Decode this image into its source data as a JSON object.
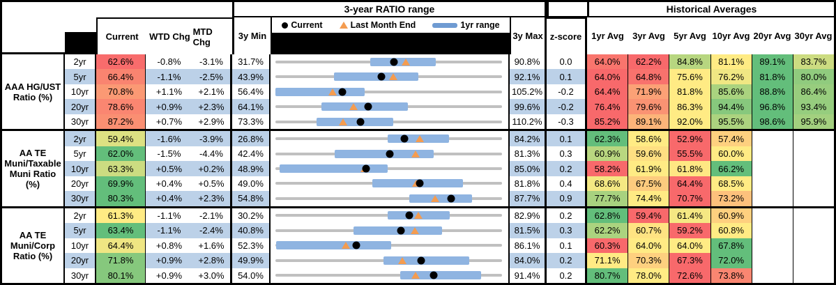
{
  "header": {
    "range_title": "3-year RATIO range",
    "hist_title": "Historical Averages",
    "col_current": "Current",
    "col_wtd": "WTD Chg",
    "col_mtd": "MTD Chg",
    "col_min": "3y Min",
    "col_max": "3y Max",
    "col_z": "z-score",
    "avg_cols": [
      "1yr Avg",
      "3yr Avg",
      "5yr Avg",
      "10yr Avg",
      "20yr Avg",
      "30yr Avg"
    ],
    "legend": {
      "current": "Current",
      "lme": "Last Month End",
      "range": "1yr range"
    }
  },
  "colors": {
    "heat_red": "#F8696B",
    "heat_yellow": "#FFEB84",
    "heat_green": "#63BE7B",
    "row_band_blue": "#BCD1E8",
    "range_bar_blue": "#8FB4E1",
    "track_gray": "#C0C0C0",
    "triangle_orange": "#F49C50",
    "dot_black": "#000000"
  },
  "chart_data": {
    "type": "table",
    "note": "rows combine a data table with an inline dot/range plot; dot = Current, triangle = Last Month End, blue bar = 1yr range, gray line = 3y min-max range",
    "columns": [
      "",
      "",
      "Current",
      "WTD Chg",
      "MTD Chg",
      "3y Min",
      "3-year RATIO range",
      "3y Max",
      "z-score",
      "1yr Avg",
      "3yr Avg",
      "5yr Avg",
      "10yr Avg",
      "20yr Avg",
      "30yr Avg"
    ],
    "groups": [
      {
        "label": "AAA HG/UST\nRatio (%)",
        "rows": [
          {
            "tenor": "2yr",
            "current": "62.6%",
            "wtd": "-0.8%",
            "mtd": "-3.1%",
            "min_3y": "31.7%",
            "max_3y": "90.8%",
            "z": "0.0",
            "last_month_end": 65.7,
            "range_1yr": [
              56.5,
              73.5
            ],
            "avgs": [
              "64.0%",
              "62.2%",
              "84.8%",
              "81.1%",
              "89.1%",
              "83.7%"
            ]
          },
          {
            "tenor": "5yr",
            "current": "66.4%",
            "wtd": "-1.1%",
            "mtd": "-2.5%",
            "min_3y": "43.9%",
            "max_3y": "92.1%",
            "z": "0.1",
            "last_month_end": 68.9,
            "range_1yr": [
              56.4,
              74.3
            ],
            "avgs": [
              "64.0%",
              "64.8%",
              "75.6%",
              "76.2%",
              "81.8%",
              "80.0%"
            ]
          },
          {
            "tenor": "10yr",
            "current": "70.8%",
            "wtd": "+1.1%",
            "mtd": "+2.1%",
            "min_3y": "56.4%",
            "max_3y": "105.2%",
            "z": "-0.2",
            "last_month_end": 68.7,
            "range_1yr": [
              56.4,
              75.6
            ],
            "avgs": [
              "64.4%",
              "71.9%",
              "81.8%",
              "85.6%",
              "88.8%",
              "86.4%"
            ]
          },
          {
            "tenor": "20yr",
            "current": "78.6%",
            "wtd": "+0.9%",
            "mtd": "+2.3%",
            "min_3y": "64.1%",
            "max_3y": "99.6%",
            "z": "-0.2",
            "last_month_end": 76.3,
            "range_1yr": [
              71.3,
              84.9
            ],
            "avgs": [
              "76.4%",
              "79.6%",
              "86.3%",
              "94.4%",
              "96.8%",
              "93.4%"
            ]
          },
          {
            "tenor": "30yr",
            "current": "87.2%",
            "wtd": "+0.7%",
            "mtd": "+2.9%",
            "min_3y": "73.3%",
            "max_3y": "110.2%",
            "z": "-0.3",
            "last_month_end": 84.3,
            "range_1yr": [
              80.0,
              92.5
            ],
            "avgs": [
              "85.2%",
              "89.1%",
              "92.0%",
              "95.5%",
              "98.6%",
              "95.9%"
            ]
          }
        ]
      },
      {
        "label": "AA TE\nMuni/Taxable\nMuni Ratio\n(%)",
        "rows": [
          {
            "tenor": "2yr",
            "current": "59.4%",
            "wtd": "-1.6%",
            "mtd": "-3.9%",
            "min_3y": "26.8%",
            "max_3y": "84.2%",
            "z": "0.1",
            "last_month_end": 63.3,
            "range_1yr": [
              55.2,
              70.7
            ],
            "avgs": [
              "62.3%",
              "58.6%",
              "52.9%",
              "57.4%",
              null,
              null
            ]
          },
          {
            "tenor": "5yr",
            "current": "62.0%",
            "wtd": "-1.5%",
            "mtd": "-4.4%",
            "min_3y": "42.4%",
            "max_3y": "81.3%",
            "z": "0.3",
            "last_month_end": 66.4,
            "range_1yr": [
              52.6,
              69.6
            ],
            "avgs": [
              "60.9%",
              "59.6%",
              "55.5%",
              "60.0%",
              null,
              null
            ]
          },
          {
            "tenor": "10yr",
            "current": "63.3%",
            "wtd": "+0.5%",
            "mtd": "+0.2%",
            "min_3y": "48.9%",
            "max_3y": "85.0%",
            "z": "0.2",
            "last_month_end": 63.1,
            "range_1yr": [
              49.6,
              66.8
            ],
            "avgs": [
              "58.2%",
              "61.9%",
              "61.8%",
              "66.2%",
              null,
              null
            ]
          },
          {
            "tenor": "20yr",
            "current": "69.9%",
            "wtd": "+0.4%",
            "mtd": "+0.5%",
            "min_3y": "49.0%",
            "max_3y": "81.8%",
            "z": "0.4",
            "last_month_end": 69.4,
            "range_1yr": [
              63.0,
              76.2
            ],
            "avgs": [
              "68.6%",
              "67.5%",
              "64.4%",
              "68.5%",
              null,
              null
            ]
          },
          {
            "tenor": "30yr",
            "current": "80.3%",
            "wtd": "+0.4%",
            "mtd": "+2.3%",
            "min_3y": "54.8%",
            "max_3y": "87.7%",
            "z": "0.9",
            "last_month_end": 78.0,
            "range_1yr": [
              74.2,
              83.3
            ],
            "avgs": [
              "77.7%",
              "74.4%",
              "70.7%",
              "73.2%",
              null,
              null
            ]
          }
        ]
      },
      {
        "label": "AA TE\nMuni/Corp\nRatio (%)",
        "rows": [
          {
            "tenor": "2yr",
            "current": "61.3%",
            "wtd": "-1.1%",
            "mtd": "-2.1%",
            "min_3y": "30.2%",
            "max_3y": "82.9%",
            "z": "0.2",
            "last_month_end": 63.4,
            "range_1yr": [
              56.3,
              70.7
            ],
            "avgs": [
              "62.8%",
              "59.4%",
              "61.4%",
              "60.9%",
              null,
              null
            ]
          },
          {
            "tenor": "5yr",
            "current": "63.4%",
            "wtd": "-1.1%",
            "mtd": "-2.4%",
            "min_3y": "40.8%",
            "max_3y": "81.5%",
            "z": "0.3",
            "last_month_end": 65.8,
            "range_1yr": [
              54.8,
              70.7
            ],
            "avgs": [
              "62.2%",
              "60.7%",
              "59.2%",
              "60.8%",
              null,
              null
            ]
          },
          {
            "tenor": "10yr",
            "current": "64.4%",
            "wtd": "+0.8%",
            "mtd": "+1.6%",
            "min_3y": "52.3%",
            "max_3y": "86.1%",
            "z": "0.1",
            "last_month_end": 62.8,
            "range_1yr": [
              52.4,
              69.6
            ],
            "avgs": [
              "60.3%",
              "64.0%",
              "64.0%",
              "67.8%",
              null,
              null
            ]
          },
          {
            "tenor": "20yr",
            "current": "71.8%",
            "wtd": "+0.9%",
            "mtd": "+2.8%",
            "min_3y": "49.9%",
            "max_3y": "84.0%",
            "z": "0.2",
            "last_month_end": 69.0,
            "range_1yr": [
              66.2,
              79.1
            ],
            "avgs": [
              "71.1%",
              "70.3%",
              "67.3%",
              "72.0%",
              null,
              null
            ]
          },
          {
            "tenor": "30yr",
            "current": "80.1%",
            "wtd": "+0.9%",
            "mtd": "+3.0%",
            "min_3y": "54.0%",
            "max_3y": "91.4%",
            "z": "0.2",
            "last_month_end": 77.1,
            "range_1yr": [
              74.6,
              87.9
            ],
            "avgs": [
              "80.7%",
              "78.0%",
              "72.6%",
              "73.8%",
              null,
              null
            ]
          }
        ]
      }
    ]
  }
}
